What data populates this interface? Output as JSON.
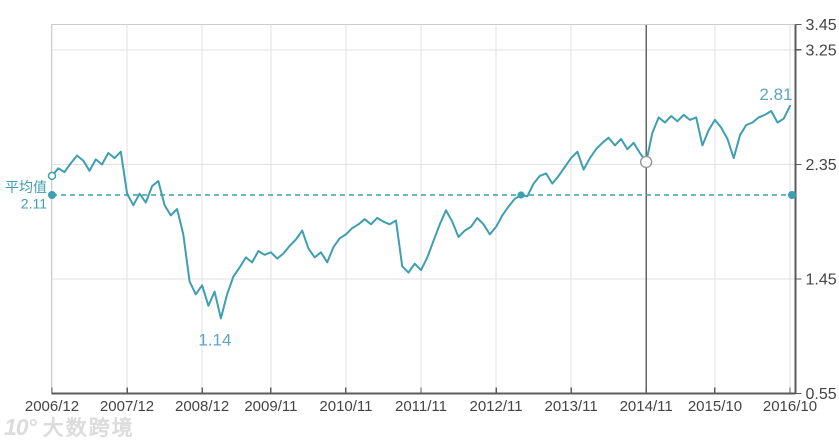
{
  "watermark": {
    "logo": "10°",
    "text": "大数跨境"
  },
  "chart_data": {
    "type": "line",
    "title": "",
    "xlabel": "",
    "ylabel": "",
    "ylim": [
      0.55,
      3.45
    ],
    "grid": "on",
    "legend": "none",
    "x_ticks": [
      {
        "index": 0,
        "label": "2006/12"
      },
      {
        "index": 12,
        "label": "2007/12"
      },
      {
        "index": 24,
        "label": "2008/12"
      },
      {
        "index": 35,
        "label": "2009/11"
      },
      {
        "index": 47,
        "label": "2010/11"
      },
      {
        "index": 59,
        "label": "2011/11"
      },
      {
        "index": 71,
        "label": "2012/11"
      },
      {
        "index": 83,
        "label": "2013/11"
      },
      {
        "index": 95,
        "label": "2014/11"
      },
      {
        "index": 106,
        "label": "2015/10"
      },
      {
        "index": 118,
        "label": "2016/10"
      }
    ],
    "y_ticks": [
      {
        "value": 3.45,
        "label": "3.45"
      },
      {
        "value": 3.25,
        "label": "3.25"
      },
      {
        "value": 2.35,
        "label": "2.35"
      },
      {
        "value": 1.45,
        "label": "1.45"
      },
      {
        "value": 0.55,
        "label": "0.55"
      }
    ],
    "y_gridlines": [
      3.25,
      2.35,
      1.45
    ],
    "values": [
      2.26,
      2.32,
      2.29,
      2.36,
      2.42,
      2.38,
      2.3,
      2.39,
      2.35,
      2.44,
      2.4,
      2.45,
      2.12,
      2.03,
      2.12,
      2.05,
      2.18,
      2.22,
      2.03,
      1.95,
      2.0,
      1.8,
      1.43,
      1.33,
      1.4,
      1.24,
      1.35,
      1.14,
      1.33,
      1.47,
      1.54,
      1.62,
      1.58,
      1.67,
      1.64,
      1.66,
      1.61,
      1.65,
      1.71,
      1.76,
      1.83,
      1.69,
      1.62,
      1.66,
      1.58,
      1.7,
      1.77,
      1.8,
      1.85,
      1.88,
      1.92,
      1.88,
      1.93,
      1.9,
      1.88,
      1.91,
      1.55,
      1.5,
      1.57,
      1.52,
      1.62,
      1.75,
      1.88,
      1.99,
      1.9,
      1.78,
      1.83,
      1.86,
      1.93,
      1.88,
      1.8,
      1.86,
      1.95,
      2.02,
      2.08,
      2.11,
      2.1,
      2.2,
      2.26,
      2.28,
      2.2,
      2.26,
      2.33,
      2.4,
      2.45,
      2.31,
      2.4,
      2.47,
      2.52,
      2.56,
      2.5,
      2.55,
      2.47,
      2.52,
      2.44,
      2.37,
      2.6,
      2.72,
      2.68,
      2.73,
      2.69,
      2.74,
      2.7,
      2.72,
      2.5,
      2.62,
      2.7,
      2.64,
      2.55,
      2.4,
      2.58,
      2.66,
      2.68,
      2.72,
      2.74,
      2.77,
      2.68,
      2.71,
      2.81
    ],
    "average": {
      "label": "平均值",
      "value": 2.11,
      "value_label": "2.11"
    },
    "annotations": {
      "min": {
        "index": 27,
        "label": "1.14"
      },
      "last": {
        "index": 118,
        "label": "2.81"
      },
      "start_marker": {
        "index": 0,
        "value": 2.26
      },
      "highlight": {
        "index": 95,
        "value": 2.37,
        "crosshair": true
      },
      "average_cross": {
        "index": 75
      }
    },
    "colors": {
      "line": "#3d9fb0",
      "average_line": "#3d9fb0",
      "average_label": "#3d9fb0",
      "annotation_text": "#5ea4c6",
      "axis_dark": "#5b5b5b",
      "tick_label": "#444444",
      "grid": "#e2e2e2",
      "border_light": "#cccccc",
      "crosshair": "#666666",
      "highlight_ring": "#999999"
    }
  }
}
